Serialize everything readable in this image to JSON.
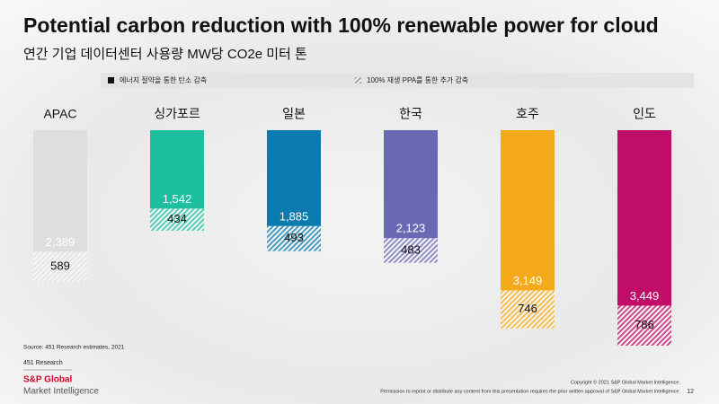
{
  "chart_data": {
    "type": "hanging-stacked-bar",
    "title": "Potential carbon reduction with 100% renewable power for cloud",
    "subtitle": "연간 기업 데이터센터 사용량 MW당 CO2e 미터 톤",
    "categories": [
      "APAC",
      "싱가포르",
      "일본",
      "한국",
      "호주",
      "인도"
    ],
    "colors": [
      "#dedede",
      "#1dbf9f",
      "#0b7bad",
      "#6a68b2",
      "#f5aa1c",
      "#c00d69"
    ],
    "series": [
      {
        "name": "에너지 절약을 통한 탄소 감축",
        "color": "#111111",
        "values": [
          2389,
          1542,
          1885,
          2123,
          3149,
          3449
        ],
        "value_labels": [
          "2,389",
          "1,542",
          "1,885",
          "2,123",
          "3,149",
          "3,449"
        ]
      },
      {
        "name": "100% 재생 PPA를 통한 추가 감축",
        "color": "#888888",
        "values": [
          589,
          434,
          493,
          483,
          746,
          786
        ]
      }
    ]
  },
  "footer": {
    "source": "Source: 451 Research estimates, 2021",
    "org": "451 Research",
    "logo_top": "S&P Global",
    "logo_bottom": "Market Intelligence",
    "copyright": "Copyright © 2021 S&P Global Market Intelligence.",
    "permission": "Permission to reprint or distribute any content from this presentation requires the prior written approval of S&P Global Market Intelligence.",
    "page": "12"
  }
}
